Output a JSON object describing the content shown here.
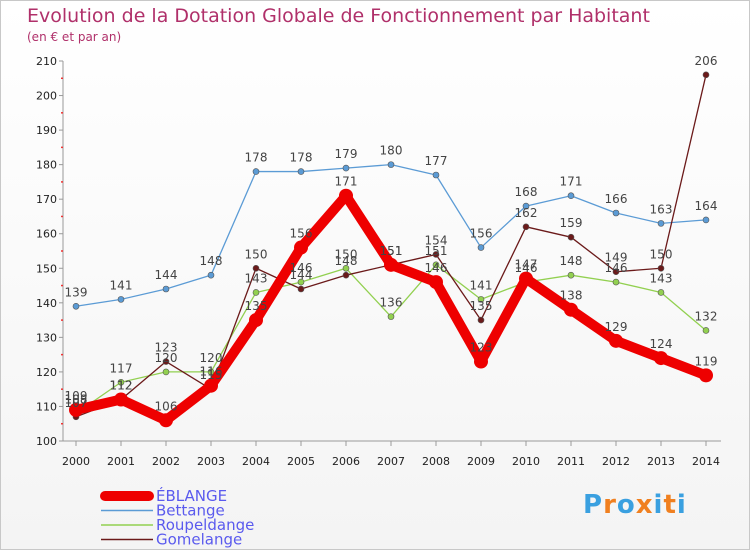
{
  "chart_data": {
    "type": "line",
    "title": "Evolution de la Dotation Globale de Fonctionnement par Habitant",
    "subtitle": "(en € et par an)",
    "xlabel": "",
    "ylabel": "",
    "categories": [
      "2000",
      "2001",
      "2002",
      "2003",
      "2004",
      "2005",
      "2006",
      "2007",
      "2008",
      "2009",
      "2010",
      "2011",
      "2012",
      "2013",
      "2014"
    ],
    "ylim": [
      100,
      210
    ],
    "yticks": [
      100,
      110,
      120,
      130,
      140,
      150,
      160,
      170,
      180,
      190,
      200,
      210
    ],
    "grid": false,
    "legend_position": "bottom-left",
    "series": [
      {
        "name": "ÉBLANGE",
        "color": "#ee0000",
        "values": [
          109,
          112,
          106,
          116,
          135,
          156,
          171,
          151,
          146,
          123,
          147,
          138,
          129,
          124,
          119
        ]
      },
      {
        "name": "Bettange",
        "color": "#5b9bd5",
        "values": [
          139,
          141,
          144,
          148,
          178,
          178,
          179,
          180,
          177,
          156,
          168,
          171,
          166,
          163,
          164
        ]
      },
      {
        "name": "Roupeldange",
        "color": "#92d050",
        "values": [
          108,
          117,
          120,
          120,
          143,
          146,
          150,
          136,
          151,
          141,
          146,
          148,
          146,
          143,
          132
        ]
      },
      {
        "name": "Gomelange",
        "color": "#6b1a1a",
        "values": [
          107,
          112,
          123,
          115,
          150,
          144,
          148,
          151,
          154,
          135,
          162,
          159,
          149,
          150,
          206
        ]
      }
    ]
  },
  "logo": {
    "text": "Proxiti",
    "letters": [
      "P",
      "r",
      "o",
      "x",
      "i",
      "t",
      "i"
    ],
    "colors": [
      "#3aa0e0",
      "#f08020",
      "#3aa0e0",
      "#f08020",
      "#3aa0e0",
      "#f08020",
      "#3aa0e0"
    ]
  }
}
